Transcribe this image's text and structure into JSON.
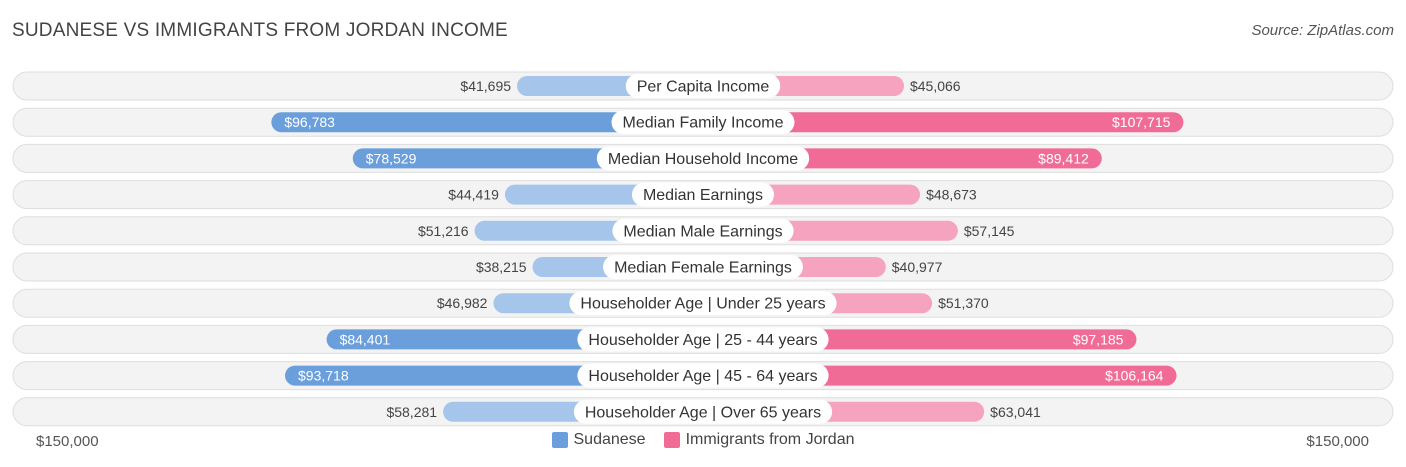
{
  "title": "SUDANESE VS IMMIGRANTS FROM JORDAN INCOME",
  "source": "Source: ZipAtlas.com",
  "axis": {
    "left_label": "$150,000",
    "right_label": "$150,000"
  },
  "colors": {
    "left_strong": "#6a9fdc",
    "left_light": "#a5c6ea",
    "right_strong": "#f06b95",
    "right_light": "#f5a3bf"
  },
  "chart_data": {
    "type": "bar",
    "orientation": "diverging-horizontal",
    "max": 150000,
    "categories": [
      "Per Capita Income",
      "Median Family Income",
      "Median Household Income",
      "Median Earnings",
      "Median Male Earnings",
      "Median Female Earnings",
      "Householder Age | Under 25 years",
      "Householder Age | 25 - 44 years",
      "Householder Age | 45 - 64 years",
      "Householder Age | Over 65 years"
    ],
    "series": [
      {
        "name": "Sudanese",
        "values": [
          41695,
          96783,
          78529,
          44419,
          51216,
          38215,
          46982,
          84401,
          93718,
          58281
        ],
        "labels": [
          "$41,695",
          "$96,783",
          "$78,529",
          "$44,419",
          "$51,216",
          "$38,215",
          "$46,982",
          "$84,401",
          "$93,718",
          "$58,281"
        ]
      },
      {
        "name": "Immigrants from Jordan",
        "values": [
          45066,
          107715,
          89412,
          48673,
          57145,
          40977,
          51370,
          97185,
          106164,
          63041
        ],
        "labels": [
          "$45,066",
          "$107,715",
          "$89,412",
          "$48,673",
          "$57,145",
          "$40,977",
          "$51,370",
          "$97,185",
          "$106,164",
          "$63,041"
        ]
      }
    ],
    "legend_position": "bottom-center"
  }
}
